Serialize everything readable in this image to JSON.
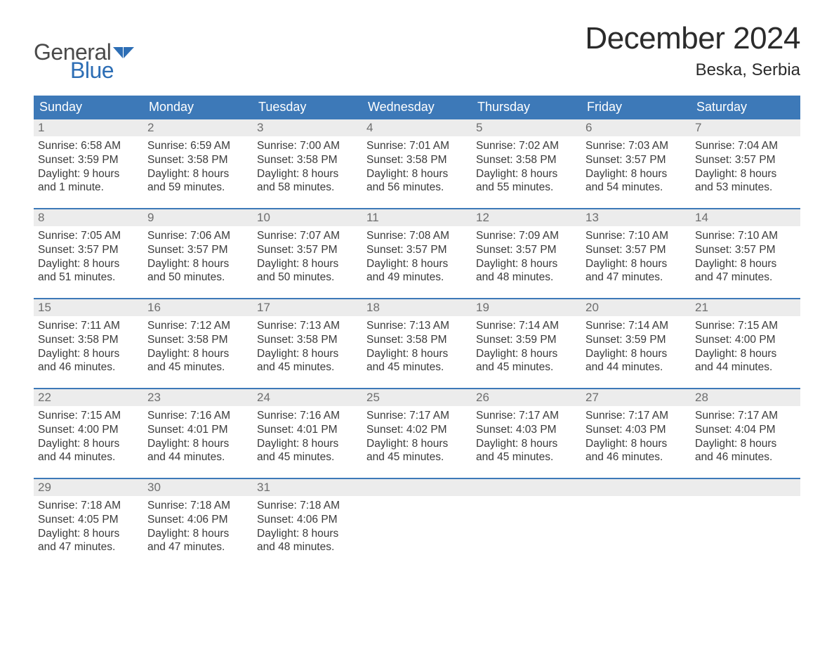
{
  "logo": {
    "text1": "General",
    "text2": "Blue",
    "flag_color": "#2d6eb5"
  },
  "title": "December 2024",
  "location": "Beska, Serbia",
  "colors": {
    "header_bg": "#3d79b8",
    "header_text": "#ffffff",
    "daynum_bg": "#ececec",
    "daynum_text": "#6e6e6e",
    "body_text": "#3a3a3a",
    "rule": "#3d79b8",
    "logo_gray": "#4a4a4a",
    "logo_blue": "#2d6eb5"
  },
  "day_names": [
    "Sunday",
    "Monday",
    "Tuesday",
    "Wednesday",
    "Thursday",
    "Friday",
    "Saturday"
  ],
  "weeks": [
    [
      {
        "num": "1",
        "sunrise": "Sunrise: 6:58 AM",
        "sunset": "Sunset: 3:59 PM",
        "daylight1": "Daylight: 9 hours",
        "daylight2": "and 1 minute."
      },
      {
        "num": "2",
        "sunrise": "Sunrise: 6:59 AM",
        "sunset": "Sunset: 3:58 PM",
        "daylight1": "Daylight: 8 hours",
        "daylight2": "and 59 minutes."
      },
      {
        "num": "3",
        "sunrise": "Sunrise: 7:00 AM",
        "sunset": "Sunset: 3:58 PM",
        "daylight1": "Daylight: 8 hours",
        "daylight2": "and 58 minutes."
      },
      {
        "num": "4",
        "sunrise": "Sunrise: 7:01 AM",
        "sunset": "Sunset: 3:58 PM",
        "daylight1": "Daylight: 8 hours",
        "daylight2": "and 56 minutes."
      },
      {
        "num": "5",
        "sunrise": "Sunrise: 7:02 AM",
        "sunset": "Sunset: 3:58 PM",
        "daylight1": "Daylight: 8 hours",
        "daylight2": "and 55 minutes."
      },
      {
        "num": "6",
        "sunrise": "Sunrise: 7:03 AM",
        "sunset": "Sunset: 3:57 PM",
        "daylight1": "Daylight: 8 hours",
        "daylight2": "and 54 minutes."
      },
      {
        "num": "7",
        "sunrise": "Sunrise: 7:04 AM",
        "sunset": "Sunset: 3:57 PM",
        "daylight1": "Daylight: 8 hours",
        "daylight2": "and 53 minutes."
      }
    ],
    [
      {
        "num": "8",
        "sunrise": "Sunrise: 7:05 AM",
        "sunset": "Sunset: 3:57 PM",
        "daylight1": "Daylight: 8 hours",
        "daylight2": "and 51 minutes."
      },
      {
        "num": "9",
        "sunrise": "Sunrise: 7:06 AM",
        "sunset": "Sunset: 3:57 PM",
        "daylight1": "Daylight: 8 hours",
        "daylight2": "and 50 minutes."
      },
      {
        "num": "10",
        "sunrise": "Sunrise: 7:07 AM",
        "sunset": "Sunset: 3:57 PM",
        "daylight1": "Daylight: 8 hours",
        "daylight2": "and 50 minutes."
      },
      {
        "num": "11",
        "sunrise": "Sunrise: 7:08 AM",
        "sunset": "Sunset: 3:57 PM",
        "daylight1": "Daylight: 8 hours",
        "daylight2": "and 49 minutes."
      },
      {
        "num": "12",
        "sunrise": "Sunrise: 7:09 AM",
        "sunset": "Sunset: 3:57 PM",
        "daylight1": "Daylight: 8 hours",
        "daylight2": "and 48 minutes."
      },
      {
        "num": "13",
        "sunrise": "Sunrise: 7:10 AM",
        "sunset": "Sunset: 3:57 PM",
        "daylight1": "Daylight: 8 hours",
        "daylight2": "and 47 minutes."
      },
      {
        "num": "14",
        "sunrise": "Sunrise: 7:10 AM",
        "sunset": "Sunset: 3:57 PM",
        "daylight1": "Daylight: 8 hours",
        "daylight2": "and 47 minutes."
      }
    ],
    [
      {
        "num": "15",
        "sunrise": "Sunrise: 7:11 AM",
        "sunset": "Sunset: 3:58 PM",
        "daylight1": "Daylight: 8 hours",
        "daylight2": "and 46 minutes."
      },
      {
        "num": "16",
        "sunrise": "Sunrise: 7:12 AM",
        "sunset": "Sunset: 3:58 PM",
        "daylight1": "Daylight: 8 hours",
        "daylight2": "and 45 minutes."
      },
      {
        "num": "17",
        "sunrise": "Sunrise: 7:13 AM",
        "sunset": "Sunset: 3:58 PM",
        "daylight1": "Daylight: 8 hours",
        "daylight2": "and 45 minutes."
      },
      {
        "num": "18",
        "sunrise": "Sunrise: 7:13 AM",
        "sunset": "Sunset: 3:58 PM",
        "daylight1": "Daylight: 8 hours",
        "daylight2": "and 45 minutes."
      },
      {
        "num": "19",
        "sunrise": "Sunrise: 7:14 AM",
        "sunset": "Sunset: 3:59 PM",
        "daylight1": "Daylight: 8 hours",
        "daylight2": "and 45 minutes."
      },
      {
        "num": "20",
        "sunrise": "Sunrise: 7:14 AM",
        "sunset": "Sunset: 3:59 PM",
        "daylight1": "Daylight: 8 hours",
        "daylight2": "and 44 minutes."
      },
      {
        "num": "21",
        "sunrise": "Sunrise: 7:15 AM",
        "sunset": "Sunset: 4:00 PM",
        "daylight1": "Daylight: 8 hours",
        "daylight2": "and 44 minutes."
      }
    ],
    [
      {
        "num": "22",
        "sunrise": "Sunrise: 7:15 AM",
        "sunset": "Sunset: 4:00 PM",
        "daylight1": "Daylight: 8 hours",
        "daylight2": "and 44 minutes."
      },
      {
        "num": "23",
        "sunrise": "Sunrise: 7:16 AM",
        "sunset": "Sunset: 4:01 PM",
        "daylight1": "Daylight: 8 hours",
        "daylight2": "and 44 minutes."
      },
      {
        "num": "24",
        "sunrise": "Sunrise: 7:16 AM",
        "sunset": "Sunset: 4:01 PM",
        "daylight1": "Daylight: 8 hours",
        "daylight2": "and 45 minutes."
      },
      {
        "num": "25",
        "sunrise": "Sunrise: 7:17 AM",
        "sunset": "Sunset: 4:02 PM",
        "daylight1": "Daylight: 8 hours",
        "daylight2": "and 45 minutes."
      },
      {
        "num": "26",
        "sunrise": "Sunrise: 7:17 AM",
        "sunset": "Sunset: 4:03 PM",
        "daylight1": "Daylight: 8 hours",
        "daylight2": "and 45 minutes."
      },
      {
        "num": "27",
        "sunrise": "Sunrise: 7:17 AM",
        "sunset": "Sunset: 4:03 PM",
        "daylight1": "Daylight: 8 hours",
        "daylight2": "and 46 minutes."
      },
      {
        "num": "28",
        "sunrise": "Sunrise: 7:17 AM",
        "sunset": "Sunset: 4:04 PM",
        "daylight1": "Daylight: 8 hours",
        "daylight2": "and 46 minutes."
      }
    ],
    [
      {
        "num": "29",
        "sunrise": "Sunrise: 7:18 AM",
        "sunset": "Sunset: 4:05 PM",
        "daylight1": "Daylight: 8 hours",
        "daylight2": "and 47 minutes."
      },
      {
        "num": "30",
        "sunrise": "Sunrise: 7:18 AM",
        "sunset": "Sunset: 4:06 PM",
        "daylight1": "Daylight: 8 hours",
        "daylight2": "and 47 minutes."
      },
      {
        "num": "31",
        "sunrise": "Sunrise: 7:18 AM",
        "sunset": "Sunset: 4:06 PM",
        "daylight1": "Daylight: 8 hours",
        "daylight2": "and 48 minutes."
      },
      {
        "empty": true
      },
      {
        "empty": true
      },
      {
        "empty": true
      },
      {
        "empty": true
      }
    ]
  ]
}
